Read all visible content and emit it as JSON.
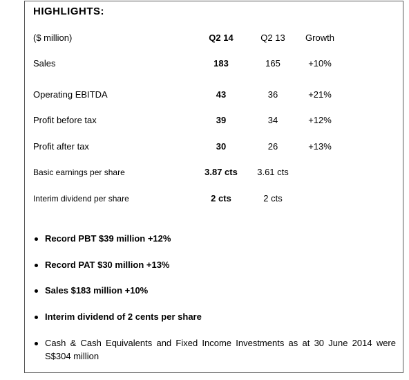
{
  "title": "HIGHLIGHTS:",
  "table": {
    "header": [
      "($ million)",
      "Q2 14",
      "Q2 13",
      "Growth"
    ],
    "rows": [
      [
        "Sales",
        "183",
        "165",
        "+10%"
      ],
      [
        "Operating EBITDA",
        "43",
        "36",
        "+21%"
      ],
      [
        "Profit before tax",
        "39",
        "34",
        "+12%"
      ],
      [
        "Profit after tax",
        "30",
        "26",
        "+13%"
      ],
      [
        "Basic earnings per share",
        "3.87 cts",
        "3.61 cts"
      ],
      [
        "Interim dividend per share",
        "2 cts",
        "2 cts"
      ]
    ]
  },
  "bullets": [
    {
      "text": "Record PBT $39 million +12%",
      "bold": true
    },
    {
      "text": "Record PAT $30 million +13%",
      "bold": true
    },
    {
      "text": "Sales $183 million +10%",
      "bold": true
    },
    {
      "text": "Interim dividend of 2 cents per share",
      "bold": true
    },
    {
      "text": "Cash & Cash Equivalents and Fixed Income Investments as at 30 June 2014 were S$304 million",
      "bold": false
    }
  ]
}
